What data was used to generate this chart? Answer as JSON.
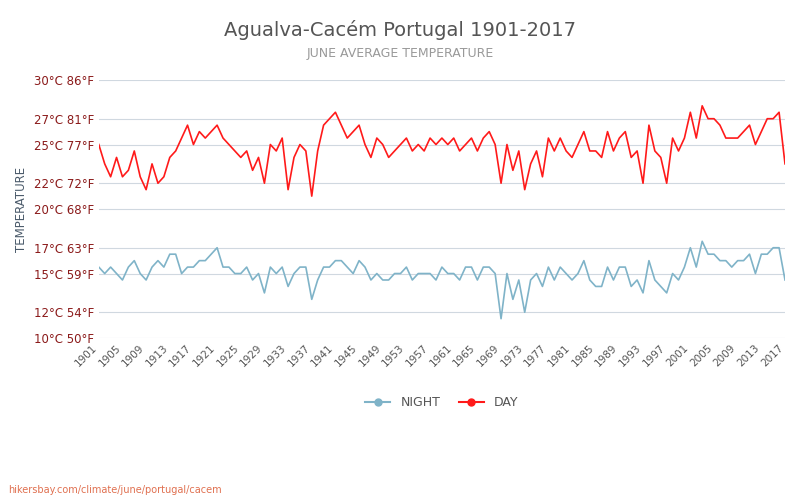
{
  "title": "Agualva-Cacém Portugal 1901-2017",
  "subtitle": "JUNE AVERAGE TEMPERATURE",
  "ylabel": "TEMPERATURE",
  "watermark": "hikersbay.com/climate/june/portugal/cacem",
  "legend_night": "NIGHT",
  "legend_day": "DAY",
  "years": [
    1901,
    1902,
    1903,
    1904,
    1905,
    1906,
    1907,
    1908,
    1909,
    1910,
    1911,
    1912,
    1913,
    1914,
    1915,
    1916,
    1917,
    1918,
    1919,
    1920,
    1921,
    1922,
    1923,
    1924,
    1925,
    1926,
    1927,
    1928,
    1929,
    1930,
    1931,
    1932,
    1933,
    1934,
    1935,
    1936,
    1937,
    1938,
    1939,
    1940,
    1941,
    1942,
    1943,
    1944,
    1945,
    1946,
    1947,
    1948,
    1949,
    1950,
    1951,
    1952,
    1953,
    1954,
    1955,
    1956,
    1957,
    1958,
    1959,
    1960,
    1961,
    1962,
    1963,
    1964,
    1965,
    1966,
    1967,
    1968,
    1969,
    1970,
    1971,
    1972,
    1973,
    1974,
    1975,
    1976,
    1977,
    1978,
    1979,
    1980,
    1981,
    1982,
    1983,
    1984,
    1985,
    1986,
    1987,
    1988,
    1989,
    1990,
    1991,
    1992,
    1993,
    1994,
    1995,
    1996,
    1997,
    1998,
    1999,
    2000,
    2001,
    2002,
    2003,
    2004,
    2005,
    2006,
    2007,
    2008,
    2009,
    2010,
    2011,
    2012,
    2013,
    2014,
    2015,
    2016,
    2017
  ],
  "day_temps": [
    25.0,
    23.5,
    22.5,
    24.0,
    22.5,
    23.0,
    24.5,
    22.5,
    21.5,
    23.5,
    22.0,
    22.5,
    24.0,
    24.5,
    25.5,
    26.5,
    25.0,
    26.0,
    25.5,
    26.0,
    26.5,
    25.5,
    25.0,
    24.5,
    24.0,
    24.5,
    23.0,
    24.0,
    22.0,
    25.0,
    24.5,
    25.5,
    21.5,
    24.0,
    25.0,
    24.5,
    21.0,
    24.5,
    26.5,
    27.0,
    27.5,
    26.5,
    25.5,
    26.0,
    26.5,
    25.0,
    24.0,
    25.5,
    25.0,
    24.0,
    24.5,
    25.0,
    25.5,
    24.5,
    25.0,
    24.5,
    25.5,
    25.0,
    25.5,
    25.0,
    25.5,
    24.5,
    25.0,
    25.5,
    24.5,
    25.5,
    26.0,
    25.0,
    22.0,
    25.0,
    23.0,
    24.5,
    21.5,
    23.5,
    24.5,
    22.5,
    25.5,
    24.5,
    25.5,
    24.5,
    24.0,
    25.0,
    26.0,
    24.5,
    24.5,
    24.0,
    26.0,
    24.5,
    25.5,
    26.0,
    24.0,
    24.5,
    22.0,
    26.5,
    24.5,
    24.0,
    22.0,
    25.5,
    24.5,
    25.5,
    27.5,
    25.5,
    28.0,
    27.0,
    27.0,
    26.5,
    25.5,
    25.5,
    25.5,
    26.0,
    26.5,
    25.0,
    26.0,
    27.0,
    27.0,
    27.5,
    23.5
  ],
  "night_temps": [
    15.5,
    15.0,
    15.5,
    15.0,
    14.5,
    15.5,
    16.0,
    15.0,
    14.5,
    15.5,
    16.0,
    15.5,
    16.5,
    16.5,
    15.0,
    15.5,
    15.5,
    16.0,
    16.0,
    16.5,
    17.0,
    15.5,
    15.5,
    15.0,
    15.0,
    15.5,
    14.5,
    15.0,
    13.5,
    15.5,
    15.0,
    15.5,
    14.0,
    15.0,
    15.5,
    15.5,
    13.0,
    14.5,
    15.5,
    15.5,
    16.0,
    16.0,
    15.5,
    15.0,
    16.0,
    15.5,
    14.5,
    15.0,
    14.5,
    14.5,
    15.0,
    15.0,
    15.5,
    14.5,
    15.0,
    15.0,
    15.0,
    14.5,
    15.5,
    15.0,
    15.0,
    14.5,
    15.5,
    15.5,
    14.5,
    15.5,
    15.5,
    15.0,
    11.5,
    15.0,
    13.0,
    14.5,
    12.0,
    14.5,
    15.0,
    14.0,
    15.5,
    14.5,
    15.5,
    15.0,
    14.5,
    15.0,
    16.0,
    14.5,
    14.0,
    14.0,
    15.5,
    14.5,
    15.5,
    15.5,
    14.0,
    14.5,
    13.5,
    16.0,
    14.5,
    14.0,
    13.5,
    15.0,
    14.5,
    15.5,
    17.0,
    15.5,
    17.5,
    16.5,
    16.5,
    16.0,
    16.0,
    15.5,
    16.0,
    16.0,
    16.5,
    15.0,
    16.5,
    16.5,
    17.0,
    17.0,
    14.5
  ],
  "ylim_min": 10,
  "ylim_max": 30,
  "yticks_c": [
    10,
    12,
    15,
    17,
    20,
    22,
    25,
    27,
    30
  ],
  "yticks_f": [
    50,
    54,
    59,
    63,
    68,
    72,
    77,
    81,
    86
  ],
  "xtick_years": [
    1901,
    1905,
    1909,
    1913,
    1917,
    1921,
    1925,
    1929,
    1933,
    1937,
    1941,
    1945,
    1949,
    1953,
    1957,
    1961,
    1965,
    1969,
    1973,
    1977,
    1981,
    1985,
    1989,
    1993,
    1997,
    2001,
    2005,
    2009,
    2013,
    2017
  ],
  "day_color": "#ff1a1a",
  "night_color": "#7fb3c8",
  "grid_color": "#d0d8e0",
  "title_color": "#555555",
  "subtitle_color": "#999999",
  "ylabel_color": "#4a5a6a",
  "ytick_color": "#8b1a1a",
  "background_color": "#ffffff",
  "watermark_color": "#e07050"
}
